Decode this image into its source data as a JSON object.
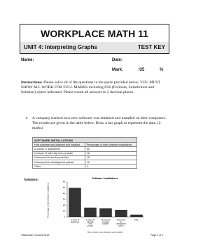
{
  "header": {
    "title": "WORKPLACE MATH 11",
    "unit": "UNIT 4: Interpreting Graphs",
    "key": "TEST KEY"
  },
  "fields": {
    "name": "Name:",
    "date": "Date:",
    "mark": "Mark:",
    "out_of": "/35",
    "percent": "%"
  },
  "instructions": {
    "label": "Instructions:",
    "text": " Please solve all of the questions in the space provided below. YOU MUST SHOW ALL WORK FOR FULL MARKS including FSS (Formula, Substitution and Solution) where indicated. Please round all answers to 2 decimal places."
  },
  "question": {
    "number": "1.",
    "text": "A company tracked how new software was obtained and installed on their computers. The results are given in the table below. Draw a bar graph to represent the data. (2 marks)"
  },
  "table": {
    "title": "SOFTWARE INSTALLATIONS",
    "columns": [
      "How software was obtained and installed",
      "Percentage of total software installations"
    ],
    "rows": [
      [
        "In-house IT department",
        50
      ],
      [
        "In-house IT with help from provider",
        16
      ],
      [
        "Outsourced to service provider",
        15
      ],
      [
        "Outsourced to development partner",
        12
      ],
      [
        "Other",
        4
      ]
    ]
  },
  "solution_label": "Solution:",
  "chart_data": {
    "type": "bar",
    "title": "Software Installations",
    "categories": [
      "In-house IT department",
      "In-house IT with help from provider",
      "Outsourced to service provider",
      "Outsourced to development partner",
      "Other"
    ],
    "values": [
      50,
      16,
      15,
      12,
      4
    ],
    "color": "#333333",
    "x_label": "How software was obtained and installed",
    "y_label": "Percentage of total software installations",
    "ylim": [
      0,
      60
    ],
    "yticks": [
      0,
      10,
      20,
      30,
      40,
      50,
      60
    ]
  },
  "footer": {
    "left": "©Alternate Courses 2015",
    "right": "Page 1 of 7"
  }
}
